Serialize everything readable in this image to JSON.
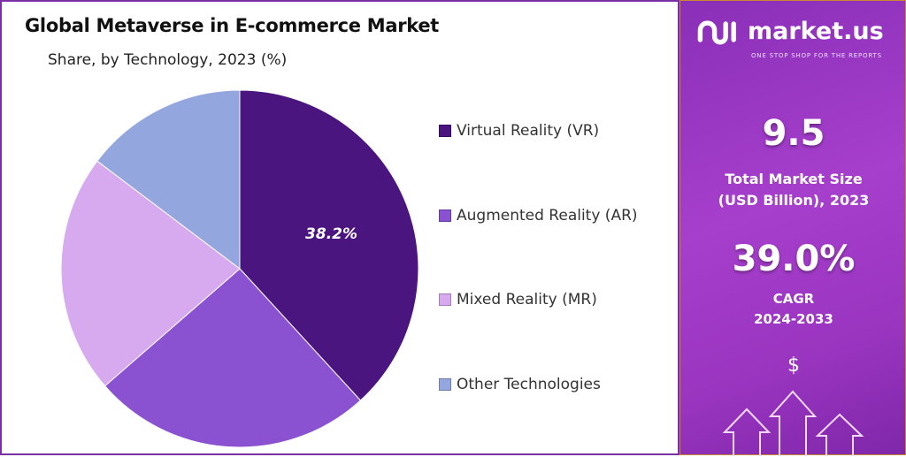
{
  "chart_data": {
    "type": "pie",
    "title": "Global Metaverse in E-commerce Market",
    "subtitle": "Share, by Technology, 2023 (%)",
    "categories": [
      "Virtual Reality (VR)",
      "Augmented Reality (AR)",
      "Mixed Reality (MR)",
      "Other Technologies"
    ],
    "values": [
      38.2,
      25.4,
      21.7,
      14.7
    ],
    "data_labels": [
      "38.2%",
      "",
      "",
      ""
    ],
    "colors": [
      "#4b1580",
      "#8a52d0",
      "#d7aaef",
      "#93a6de"
    ],
    "start_angle": "12 o'clock",
    "direction": "clockwise",
    "legend_position": "right"
  },
  "panel": {
    "brand": "market.us",
    "tagline": "ONE STOP SHOP FOR THE REPORTS",
    "market_size": "9.5",
    "market_size_label_1": "Total Market Size",
    "market_size_label_2": "(USD Billion), 2023",
    "cagr": "39.0%",
    "cagr_label_1": "CAGR",
    "cagr_label_2": "2024-2033",
    "dollar": "$"
  }
}
